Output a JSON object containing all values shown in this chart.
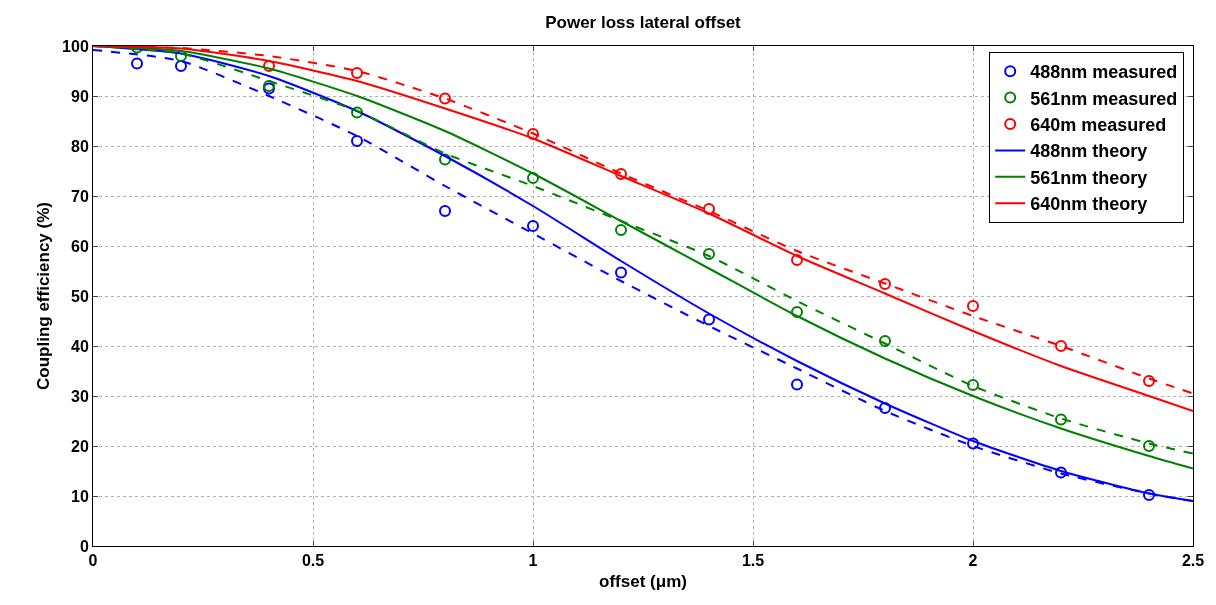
{
  "chart_data": {
    "type": "line",
    "title": "Power loss lateral offset",
    "xlabel": "offset (μm)",
    "ylabel": "Coupling efficiency (%)",
    "xlim": [
      0,
      2.5
    ],
    "xticks": [
      0,
      0.5,
      1,
      1.5,
      2,
      2.5
    ],
    "ylim": [
      0,
      100
    ],
    "yticks": [
      0,
      10,
      20,
      30,
      40,
      50,
      60,
      70,
      80,
      90,
      100
    ],
    "grid": true,
    "legend": "top right",
    "series": [
      {
        "name": "488nm measured",
        "type": "scatter",
        "marker": "circle",
        "color": "#0000ff",
        "x": [
          0.1,
          0.2,
          0.4,
          0.6,
          0.8,
          1.0,
          1.2,
          1.4,
          1.6,
          1.8,
          2.0,
          2.2,
          2.4
        ],
        "values": [
          96.5,
          96,
          91.5,
          81,
          67,
          64,
          54.7,
          45.3,
          32.3,
          27.6,
          20.5,
          14.7,
          10.2
        ]
      },
      {
        "name": "561nm measured",
        "type": "scatter",
        "marker": "circle",
        "color": "#008000",
        "x": [
          0.1,
          0.2,
          0.4,
          0.6,
          0.8,
          1.0,
          1.2,
          1.4,
          1.6,
          1.8,
          2.0,
          2.2,
          2.4
        ],
        "values": [
          99.7,
          98,
          92,
          86.7,
          77.3,
          73.6,
          63.2,
          58.4,
          46.8,
          41,
          32.2,
          25.3,
          20
        ]
      },
      {
        "name": "640m measured",
        "type": "scatter",
        "marker": "circle",
        "color": "#ff0000",
        "x": [
          0.4,
          0.6,
          0.8,
          1.0,
          1.2,
          1.4,
          1.6,
          1.8,
          2.0,
          2.2,
          2.4
        ],
        "values": [
          96,
          94.6,
          89.5,
          82.4,
          74.4,
          67.4,
          57.2,
          52.4,
          48,
          40,
          33
        ]
      },
      {
        "name": "488nm theory",
        "line_style": "solid",
        "color": "#0000ff",
        "x": [
          0,
          0.2,
          0.4,
          0.6,
          0.8,
          1.0,
          1.2,
          1.4,
          1.6,
          1.8,
          2.0,
          2.2,
          2.4,
          2.5
        ],
        "values": [
          100,
          98.5,
          94,
          87,
          78,
          68,
          57,
          46.5,
          37,
          28.5,
          21,
          15,
          10.5,
          9
        ]
      },
      {
        "name": "561nm theory",
        "line_style": "solid",
        "color": "#008000",
        "x": [
          0,
          0.2,
          0.4,
          0.6,
          0.8,
          1.0,
          1.2,
          1.4,
          1.6,
          1.8,
          2.0,
          2.2,
          2.4,
          2.5
        ],
        "values": [
          100,
          99,
          95.5,
          90,
          83,
          74.5,
          65,
          55.5,
          46,
          37.5,
          30,
          23.5,
          18,
          15.5
        ]
      },
      {
        "name": "640nm theory",
        "line_style": "solid",
        "color": "#ff0000",
        "x": [
          0,
          0.2,
          0.4,
          0.6,
          0.8,
          1.0,
          1.2,
          1.4,
          1.6,
          1.8,
          2.0,
          2.2,
          2.4,
          2.5
        ],
        "values": [
          100,
          99.5,
          97,
          93,
          87.5,
          81.5,
          74,
          66.5,
          58,
          50.5,
          43,
          36,
          30,
          27
        ]
      },
      {
        "line_style": "dashed",
        "color": "#0000ff",
        "x": [
          0,
          0.2,
          0.4,
          0.6,
          0.8,
          1.0,
          1.2,
          1.4,
          1.6,
          1.8,
          2.0,
          2.2,
          2.4,
          2.5
        ],
        "values": [
          99.2,
          97,
          90,
          82,
          72,
          62.5,
          53,
          44,
          35.5,
          27,
          20,
          14.5,
          10.5,
          9
        ]
      },
      {
        "line_style": "dashed",
        "color": "#008000",
        "x": [
          0,
          0.2,
          0.4,
          0.6,
          0.8,
          1.0,
          1.2,
          1.4,
          1.6,
          1.8,
          2.0,
          2.2,
          2.4,
          2.5
        ],
        "values": [
          100,
          98.5,
          93,
          87,
          78.5,
          72,
          65,
          58,
          49,
          40.5,
          32,
          25.5,
          20.5,
          18.5
        ]
      },
      {
        "line_style": "dashed",
        "color": "#ff0000",
        "x": [
          0,
          0.2,
          0.4,
          0.6,
          0.8,
          1.0,
          1.2,
          1.4,
          1.6,
          1.8,
          2.0,
          2.2,
          2.4,
          2.5
        ],
        "values": [
          100,
          99.6,
          98,
          95,
          89.5,
          82.5,
          74.5,
          67,
          59,
          52.5,
          46,
          40,
          33.5,
          30.5
        ]
      }
    ]
  }
}
